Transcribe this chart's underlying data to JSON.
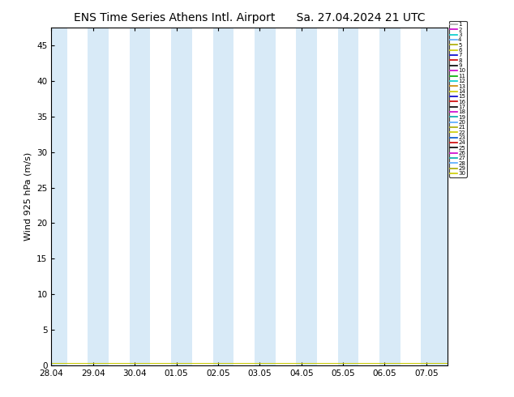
{
  "title_left": "ENS Time Series Athens Intl. Airport",
  "title_right": "Sa. 27.04.2024 21 UTC",
  "ylabel": "Wind 925 hPa (m/s)",
  "ylim": [
    0,
    47.5
  ],
  "yticks": [
    0,
    5,
    10,
    15,
    20,
    25,
    30,
    35,
    40,
    45
  ],
  "xtick_labels": [
    "28.04",
    "29.04",
    "30.04",
    "01.05",
    "02.05",
    "03.05",
    "04.05",
    "05.05",
    "06.05",
    "07.05"
  ],
  "bg_color": "#ffffff",
  "plot_bg_color": "#ffffff",
  "shaded_band_color": "#d8eaf7",
  "member_colors": [
    "#aaaaaa",
    "#cc00cc",
    "#00cccc",
    "#55aaff",
    "#aaaa00",
    "#cccc00",
    "#0000cc",
    "#cc0000",
    "#000000",
    "#cc00cc",
    "#00aa00",
    "#00cccc",
    "#cc8800",
    "#cccc00",
    "#0000cc",
    "#cc0000",
    "#000000",
    "#cc00cc",
    "#00aaaa",
    "#55aaff",
    "#aaaa00",
    "#cccc00",
    "#0055cc",
    "#cc0000",
    "#000000",
    "#cc00cc",
    "#00aaaa",
    "#55aaff",
    "#aaaa00",
    "#cccc00"
  ],
  "legend_labels": [
    "1",
    "2",
    "3",
    "4",
    "5",
    "6",
    "7",
    "8",
    "9",
    "10",
    "11",
    "12",
    "13",
    "14",
    "15",
    "16",
    "17",
    "18",
    "19",
    "20",
    "21",
    "22",
    "23",
    "24",
    "25",
    "26",
    "27",
    "28",
    "29",
    "30"
  ],
  "num_members": 30,
  "title_fontsize": 10,
  "axis_label_fontsize": 8,
  "tick_fontsize": 7.5
}
